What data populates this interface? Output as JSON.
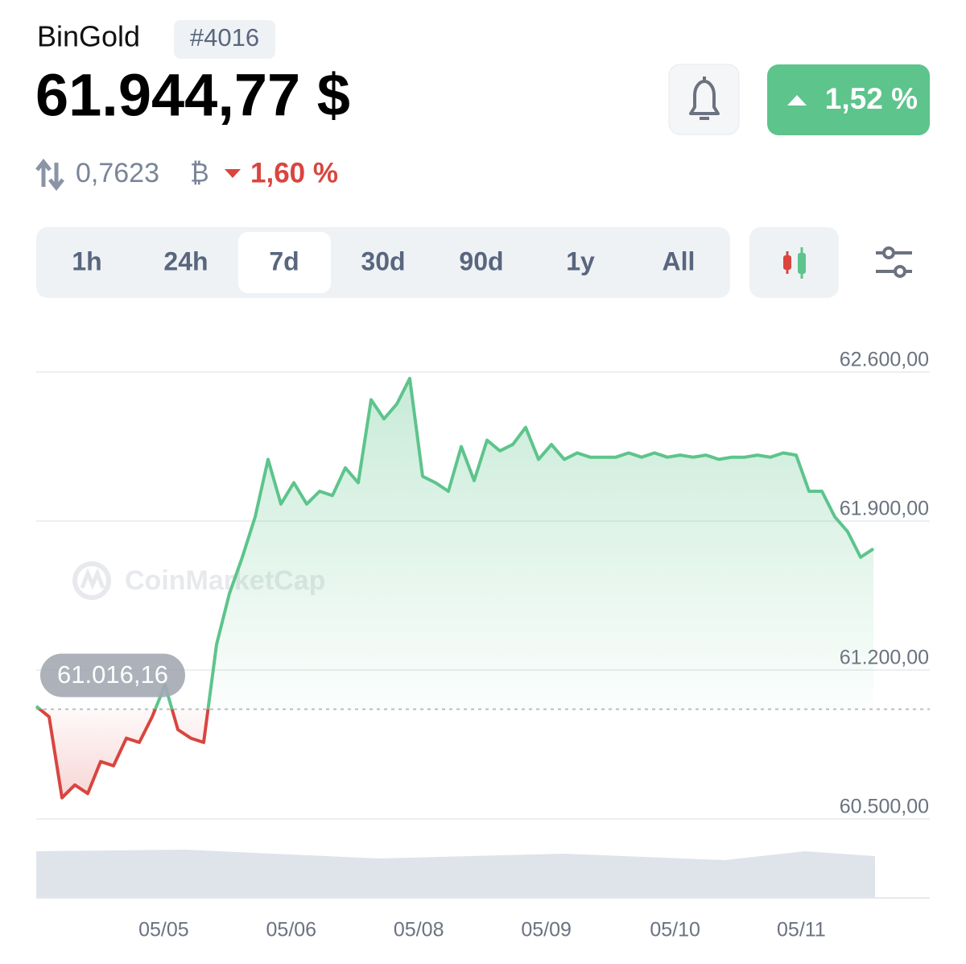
{
  "header": {
    "name": "BinGold",
    "rank": "#4016",
    "price": "61.944,77 $",
    "change": "1,52 %",
    "btc_price": "0,7623",
    "btc_symbol": "₿",
    "btc_change": "1,60 %"
  },
  "tabs": [
    "1h",
    "24h",
    "7d",
    "30d",
    "90d",
    "1y",
    "All"
  ],
  "active_tab": 2,
  "watermark": "CoinMarketCap",
  "chart_data": {
    "type": "line",
    "up_color": "#5dc48c",
    "down_color": "#d9453f",
    "baseline": {
      "value": 61016.16,
      "label": "61.016,16"
    },
    "values": [
      61030,
      60980,
      60600,
      60660,
      60620,
      60770,
      60750,
      60880,
      60860,
      60980,
      61130,
      60920,
      60880,
      60860,
      61320,
      61560,
      61730,
      61920,
      62190,
      61980,
      62080,
      61980,
      62040,
      62020,
      62150,
      62080,
      62470,
      62380,
      62450,
      62570,
      62110,
      62080,
      62040,
      62250,
      62090,
      62280,
      62230,
      62260,
      62340,
      62190,
      62260,
      62190,
      62220,
      62200,
      62200,
      62200,
      62220,
      62200,
      62220,
      62200,
      62210,
      62200,
      62210,
      62190,
      62200,
      62200,
      62210,
      62200,
      62220,
      62210,
      62040,
      62040,
      61920,
      61850,
      61730,
      61770
    ],
    "xlim": [
      0,
      65
    ],
    "xticks": [
      {
        "value": 9.9,
        "label": "05/05"
      },
      {
        "value": 19.8,
        "label": "05/06"
      },
      {
        "value": 29.7,
        "label": "05/08"
      },
      {
        "value": 39.6,
        "label": "05/09"
      },
      {
        "value": 49.6,
        "label": "05/10"
      },
      {
        "value": 59.4,
        "label": "05/11"
      }
    ],
    "ylim": [
      60500,
      62600
    ],
    "yticks": [
      {
        "value": 62600,
        "label": "62.600,00"
      },
      {
        "value": 61900,
        "label": "61.900,00"
      },
      {
        "value": 61200,
        "label": "61.200,00"
      },
      {
        "value": 60500,
        "label": "60.500,00"
      }
    ],
    "grid": true
  }
}
